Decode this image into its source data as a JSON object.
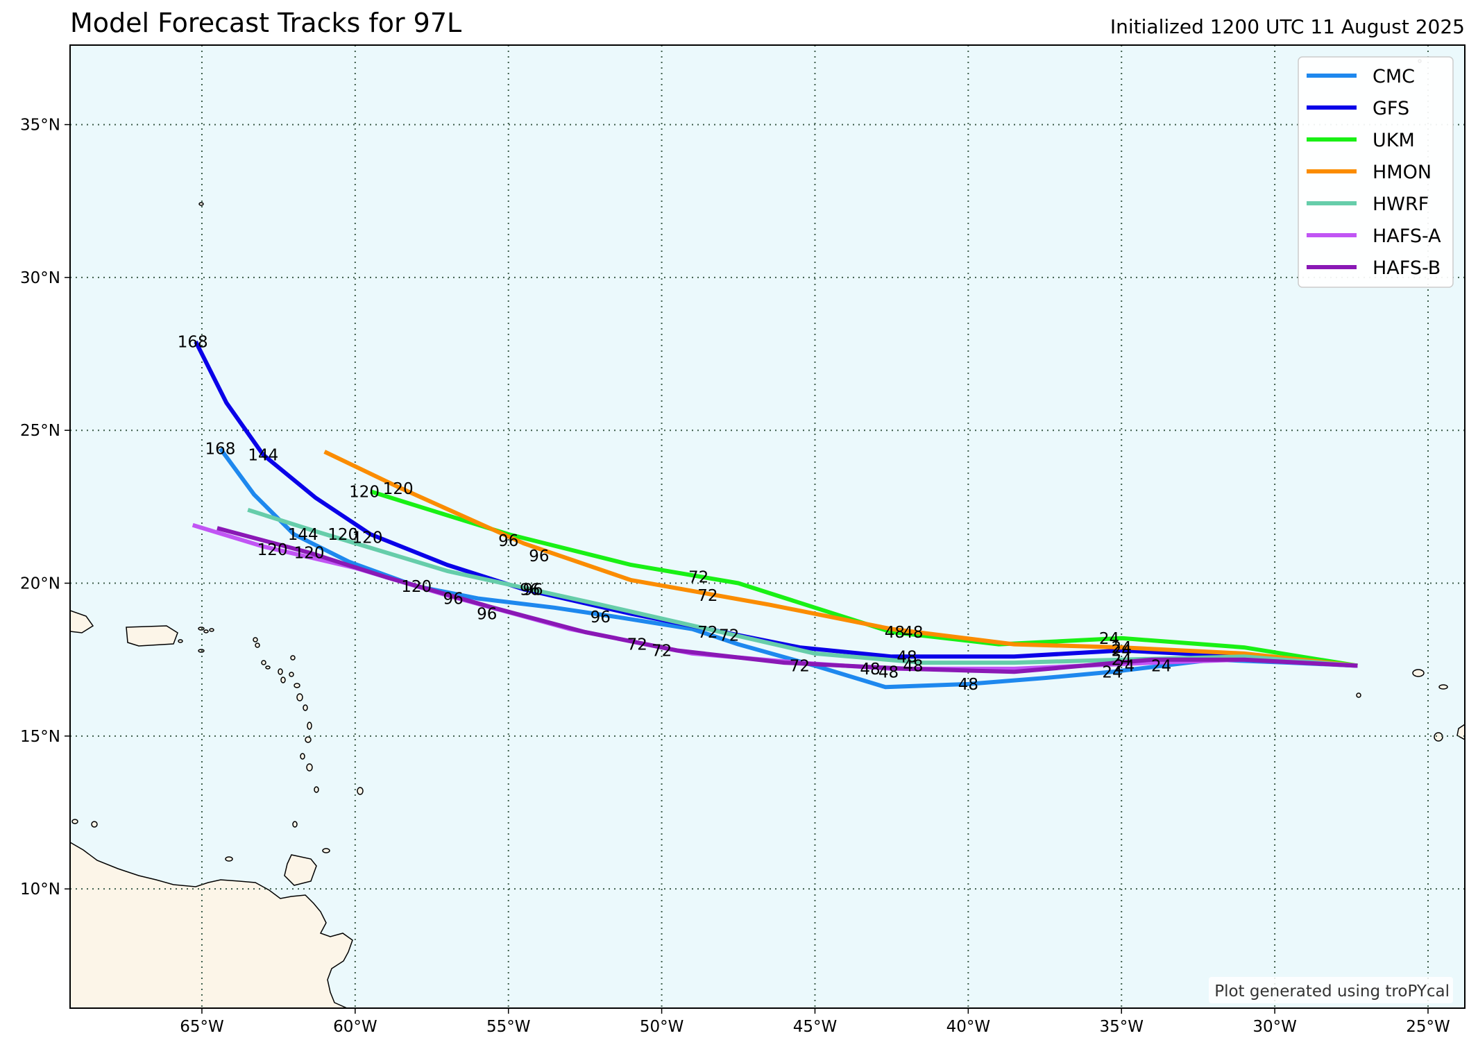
{
  "title": "Model Forecast Tracks for 97L",
  "subtitle": "Initialized 1200 UTC 11 August 2025",
  "credit": "Plot generated using troPYcal",
  "colors": {
    "ocean": "#ebf9fc",
    "land": "#fcf5e8",
    "grid": "#3d5c4a",
    "frame": "#000000"
  },
  "chart_data": {
    "type": "line",
    "xlim": [
      -69.3,
      -23.8
    ],
    "ylim": [
      6.1,
      37.6
    ],
    "grid": true,
    "legend_position": "top-right",
    "x_ticks": [
      {
        "value": -65,
        "label": "65°W"
      },
      {
        "value": -60,
        "label": "60°W"
      },
      {
        "value": -55,
        "label": "55°W"
      },
      {
        "value": -50,
        "label": "50°W"
      },
      {
        "value": -45,
        "label": "45°W"
      },
      {
        "value": -40,
        "label": "40°W"
      },
      {
        "value": -35,
        "label": "35°W"
      },
      {
        "value": -30,
        "label": "30°W"
      },
      {
        "value": -25,
        "label": "25°W"
      }
    ],
    "y_ticks": [
      {
        "value": 10,
        "label": "10°N"
      },
      {
        "value": 15,
        "label": "15°N"
      },
      {
        "value": 20,
        "label": "20°N"
      },
      {
        "value": 25,
        "label": "25°N"
      },
      {
        "value": 30,
        "label": "30°N"
      },
      {
        "value": 35,
        "label": "35°N"
      }
    ],
    "series": [
      {
        "name": "CMC",
        "color": "#1e88ee",
        "points": [
          [
            -27.3,
            17.3
          ],
          [
            -29.5,
            17.4
          ],
          [
            -32,
            17.5
          ],
          [
            -35.3,
            17.1
          ],
          [
            -37.5,
            16.9
          ],
          [
            -40,
            16.7
          ],
          [
            -42.7,
            16.6
          ],
          [
            -45,
            17.3
          ],
          [
            -47.5,
            18.0
          ],
          [
            -49,
            18.5
          ],
          [
            -51.5,
            18.9
          ],
          [
            -53.5,
            19.2
          ],
          [
            -56,
            19.5
          ],
          [
            -58,
            19.9
          ],
          [
            -60.2,
            20.7
          ],
          [
            -62,
            21.6
          ],
          [
            -63.3,
            22.9
          ],
          [
            -64.4,
            24.4
          ]
        ],
        "labels": [
          {
            "text": "24",
            "lon": -35.3,
            "lat": 17.1
          },
          {
            "text": "48",
            "lon": -40,
            "lat": 16.7
          },
          {
            "text": "72",
            "lon": -45.5,
            "lat": 17.3
          },
          {
            "text": "96",
            "lon": -52,
            "lat": 18.9
          },
          {
            "text": "120",
            "lon": -58,
            "lat": 19.9
          },
          {
            "text": "144",
            "lon": -61.7,
            "lat": 21.6
          },
          {
            "text": "168",
            "lon": -64.4,
            "lat": 24.4
          }
        ]
      },
      {
        "name": "GFS",
        "color": "#0a00e8",
        "points": [
          [
            -27.3,
            17.3
          ],
          [
            -31,
            17.6
          ],
          [
            -35,
            17.8
          ],
          [
            -38.5,
            17.6
          ],
          [
            -42.5,
            17.6
          ],
          [
            -45.5,
            17.9
          ],
          [
            -48.5,
            18.5
          ],
          [
            -51,
            19.0
          ],
          [
            -54.5,
            19.8
          ],
          [
            -57,
            20.6
          ],
          [
            -59.5,
            21.6
          ],
          [
            -61.3,
            22.8
          ],
          [
            -63,
            24.2
          ],
          [
            -64.2,
            25.9
          ],
          [
            -65.2,
            27.9
          ]
        ],
        "labels": [
          {
            "text": "24",
            "lon": -35.0,
            "lat": 17.8
          },
          {
            "text": "48",
            "lon": -42.0,
            "lat": 17.6
          },
          {
            "text": "72",
            "lon": -47.8,
            "lat": 18.3
          },
          {
            "text": "96",
            "lon": -54.3,
            "lat": 19.8
          },
          {
            "text": "120",
            "lon": -60.4,
            "lat": 21.6
          },
          {
            "text": "144",
            "lon": -63.0,
            "lat": 24.2
          },
          {
            "text": "168",
            "lon": -65.3,
            "lat": 27.9
          }
        ]
      },
      {
        "name": "UKM",
        "color": "#19f015",
        "points": [
          [
            -27.3,
            17.3
          ],
          [
            -31,
            17.9
          ],
          [
            -35,
            18.2
          ],
          [
            -39,
            18.0
          ],
          [
            -42.5,
            18.4
          ],
          [
            -45,
            19.2
          ],
          [
            -47.5,
            20.0
          ],
          [
            -51,
            20.6
          ],
          [
            -55,
            21.6
          ],
          [
            -59.5,
            23.0
          ]
        ],
        "labels": [
          {
            "text": "24",
            "lon": -35.4,
            "lat": 18.2
          },
          {
            "text": "48",
            "lon": -42.4,
            "lat": 18.4
          },
          {
            "text": "72",
            "lon": -48.8,
            "lat": 20.2
          },
          {
            "text": "96",
            "lon": -55.0,
            "lat": 21.4
          },
          {
            "text": "120",
            "lon": -59.7,
            "lat": 23.0
          }
        ]
      },
      {
        "name": "HMON",
        "color": "#fb8c00",
        "points": [
          [
            -27.3,
            17.3
          ],
          [
            -31,
            17.7
          ],
          [
            -35,
            17.9
          ],
          [
            -38.5,
            18.0
          ],
          [
            -42.5,
            18.5
          ],
          [
            -46.5,
            19.3
          ],
          [
            -51,
            20.1
          ],
          [
            -54.5,
            21.3
          ],
          [
            -58.5,
            23.1
          ],
          [
            -61,
            24.3
          ]
        ],
        "labels": [
          {
            "text": "24",
            "lon": -35.0,
            "lat": 17.9
          },
          {
            "text": "48",
            "lon": -41.8,
            "lat": 18.4
          },
          {
            "text": "72",
            "lon": -48.5,
            "lat": 19.6
          },
          {
            "text": "96",
            "lon": -54.0,
            "lat": 20.9
          },
          {
            "text": "120",
            "lon": -58.6,
            "lat": 23.1
          }
        ]
      },
      {
        "name": "HWRF",
        "color": "#66cdaa",
        "points": [
          [
            -27.3,
            17.3
          ],
          [
            -31,
            17.6
          ],
          [
            -35,
            17.5
          ],
          [
            -38.5,
            17.4
          ],
          [
            -41.5,
            17.4
          ],
          [
            -45,
            17.7
          ],
          [
            -48.5,
            18.5
          ],
          [
            -52,
            19.3
          ],
          [
            -57,
            20.4
          ],
          [
            -61.3,
            21.7
          ],
          [
            -63.5,
            22.4
          ]
        ],
        "labels": [
          {
            "text": "24",
            "lon": -35.0,
            "lat": 17.5
          },
          {
            "text": "48",
            "lon": -41.8,
            "lat": 17.3
          },
          {
            "text": "72",
            "lon": -48.5,
            "lat": 18.4
          },
          {
            "text": "96",
            "lon": -54.2,
            "lat": 19.8
          },
          {
            "text": "120",
            "lon": -59.6,
            "lat": 21.5
          }
        ]
      },
      {
        "name": "HAFS-A",
        "color": "#c155f4",
        "points": [
          [
            -27.3,
            17.3
          ],
          [
            -31,
            17.5
          ],
          [
            -34,
            17.4
          ],
          [
            -38.5,
            17.2
          ],
          [
            -42.5,
            17.2
          ],
          [
            -45.5,
            17.4
          ],
          [
            -49,
            17.7
          ],
          [
            -53,
            18.5
          ],
          [
            -57,
            19.6
          ],
          [
            -60,
            20.5
          ],
          [
            -63,
            21.2
          ],
          [
            -65.3,
            21.9
          ]
        ],
        "labels": [
          {
            "text": "24",
            "lon": -34.9,
            "lat": 17.3
          },
          {
            "text": "48",
            "lon": -43.2,
            "lat": 17.2
          },
          {
            "text": "72",
            "lon": -50.8,
            "lat": 18.0
          },
          {
            "text": "96",
            "lon": -56.8,
            "lat": 19.5
          },
          {
            "text": "120",
            "lon": -62.7,
            "lat": 21.1
          }
        ]
      },
      {
        "name": "HAFS-B",
        "color": "#8a18b5",
        "points": [
          [
            -27.3,
            17.3
          ],
          [
            -31,
            17.5
          ],
          [
            -34,
            17.5
          ],
          [
            -38.5,
            17.1
          ],
          [
            -42,
            17.2
          ],
          [
            -46,
            17.4
          ],
          [
            -49.5,
            17.8
          ],
          [
            -52.5,
            18.4
          ],
          [
            -55.5,
            19.2
          ],
          [
            -59,
            20.2
          ],
          [
            -61.5,
            21.0
          ],
          [
            -64.5,
            21.8
          ]
        ],
        "labels": [
          {
            "text": "24",
            "lon": -33.7,
            "lat": 17.3
          },
          {
            "text": "48",
            "lon": -42.6,
            "lat": 17.1
          },
          {
            "text": "72",
            "lon": -50.0,
            "lat": 17.8
          },
          {
            "text": "96",
            "lon": -55.7,
            "lat": 19.0
          },
          {
            "text": "120",
            "lon": -61.5,
            "lat": 21.0
          }
        ]
      }
    ]
  }
}
